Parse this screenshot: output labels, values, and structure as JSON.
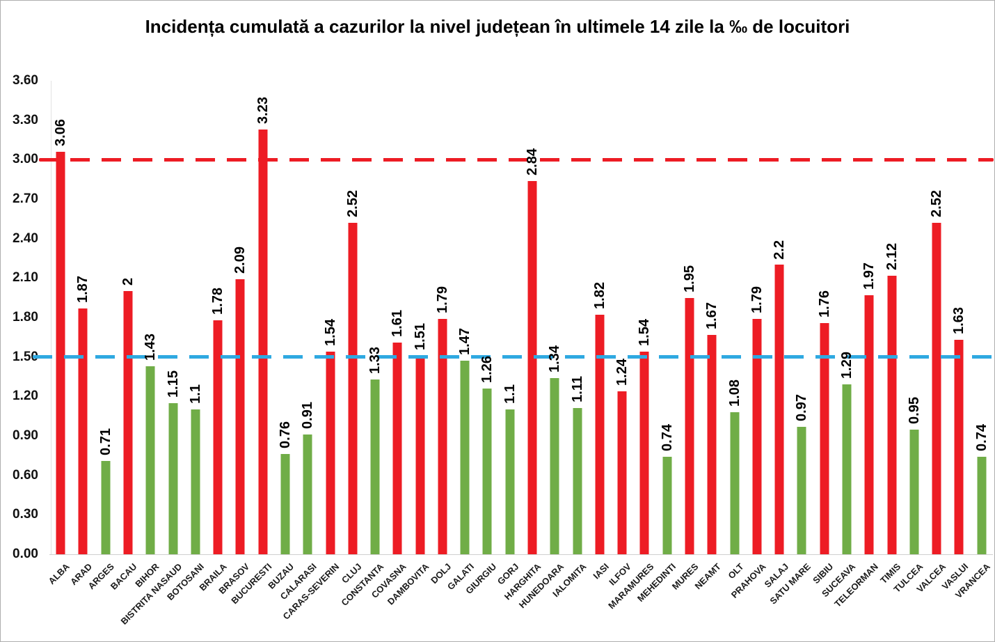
{
  "chart_data": {
    "type": "bar",
    "title": "Incidența cumulată a cazurilor la nivel județean în ultimele 14 zile la ‰ de locuitori",
    "xlabel": "",
    "ylabel": "",
    "ylim": [
      0,
      3.6
    ],
    "y_tick_step": 0.3,
    "y_tick_labels": [
      "3.60",
      "3.30",
      "3.00",
      "2.70",
      "2.40",
      "2.10",
      "1.80",
      "1.50",
      "1.20",
      "0.90",
      "0.60",
      "0.30",
      "0.00"
    ],
    "grid": false,
    "legend_position": "none",
    "palette": {
      "red": "#ED1C24",
      "green": "#70AD47"
    },
    "reference_lines": [
      {
        "value": 3.0,
        "color": "#ED1C24",
        "style": "dashed"
      },
      {
        "value": 1.5,
        "color": "#2FA9E1",
        "style": "dashed"
      }
    ],
    "bars": [
      {
        "name": "ALBA",
        "value": 3.06,
        "color": "red"
      },
      {
        "name": "ARAD",
        "value": 1.87,
        "color": "red"
      },
      {
        "name": "ARGES",
        "value": 0.71,
        "color": "green"
      },
      {
        "name": "BACAU",
        "value": 2,
        "color": "red"
      },
      {
        "name": "BIHOR",
        "value": 1.43,
        "color": "green"
      },
      {
        "name": "BISTRITA NASAUD",
        "value": 1.15,
        "color": "green"
      },
      {
        "name": "BOTOSANI",
        "value": 1.1,
        "color": "green"
      },
      {
        "name": "BRAILA",
        "value": 1.78,
        "color": "red"
      },
      {
        "name": "BRASOV",
        "value": 2.09,
        "color": "red"
      },
      {
        "name": "BUCURESTI",
        "value": 3.23,
        "color": "red"
      },
      {
        "name": "BUZAU",
        "value": 0.76,
        "color": "green"
      },
      {
        "name": "CALARASI",
        "value": 0.91,
        "color": "green"
      },
      {
        "name": "CARAS-SEVERIN",
        "value": 1.54,
        "color": "red"
      },
      {
        "name": "CLUJ",
        "value": 2.52,
        "color": "red"
      },
      {
        "name": "CONSTANTA",
        "value": 1.33,
        "color": "green"
      },
      {
        "name": "COVASNA",
        "value": 1.61,
        "color": "red"
      },
      {
        "name": "DAMBOVITA",
        "value": 1.51,
        "color": "red"
      },
      {
        "name": "DOLJ",
        "value": 1.79,
        "color": "red"
      },
      {
        "name": "GALATI",
        "value": 1.47,
        "color": "green"
      },
      {
        "name": "GIURGIU",
        "value": 1.26,
        "color": "green"
      },
      {
        "name": "GORJ",
        "value": 1.1,
        "color": "green"
      },
      {
        "name": "HARGHITA",
        "value": 2.84,
        "color": "red"
      },
      {
        "name": "HUNEDOARA",
        "value": 1.34,
        "color": "green"
      },
      {
        "name": "IALOMITA",
        "value": 1.11,
        "color": "green"
      },
      {
        "name": "IASI",
        "value": 1.82,
        "color": "red"
      },
      {
        "name": "ILFOV",
        "value": 1.24,
        "color": "red"
      },
      {
        "name": "MARAMURES",
        "value": 1.54,
        "color": "red"
      },
      {
        "name": "MEHEDINTI",
        "value": 0.74,
        "color": "green"
      },
      {
        "name": "MURES",
        "value": 1.95,
        "color": "red"
      },
      {
        "name": "NEAMT",
        "value": 1.67,
        "color": "red"
      },
      {
        "name": "OLT",
        "value": 1.08,
        "color": "green"
      },
      {
        "name": "PRAHOVA",
        "value": 1.79,
        "color": "red"
      },
      {
        "name": "SALAJ",
        "value": 2.2,
        "color": "red"
      },
      {
        "name": "SATU MARE",
        "value": 0.97,
        "color": "green"
      },
      {
        "name": "SIBIU",
        "value": 1.76,
        "color": "red"
      },
      {
        "name": "SUCEAVA",
        "value": 1.29,
        "color": "green"
      },
      {
        "name": "TELEORMAN",
        "value": 1.97,
        "color": "red"
      },
      {
        "name": "TIMIS",
        "value": 2.12,
        "color": "red"
      },
      {
        "name": "TULCEA",
        "value": 0.95,
        "color": "green"
      },
      {
        "name": "VALCEA",
        "value": 2.52,
        "color": "red"
      },
      {
        "name": "VASLUI",
        "value": 1.63,
        "color": "red"
      },
      {
        "name": "VRANCEA",
        "value": 0.74,
        "color": "green"
      }
    ]
  }
}
